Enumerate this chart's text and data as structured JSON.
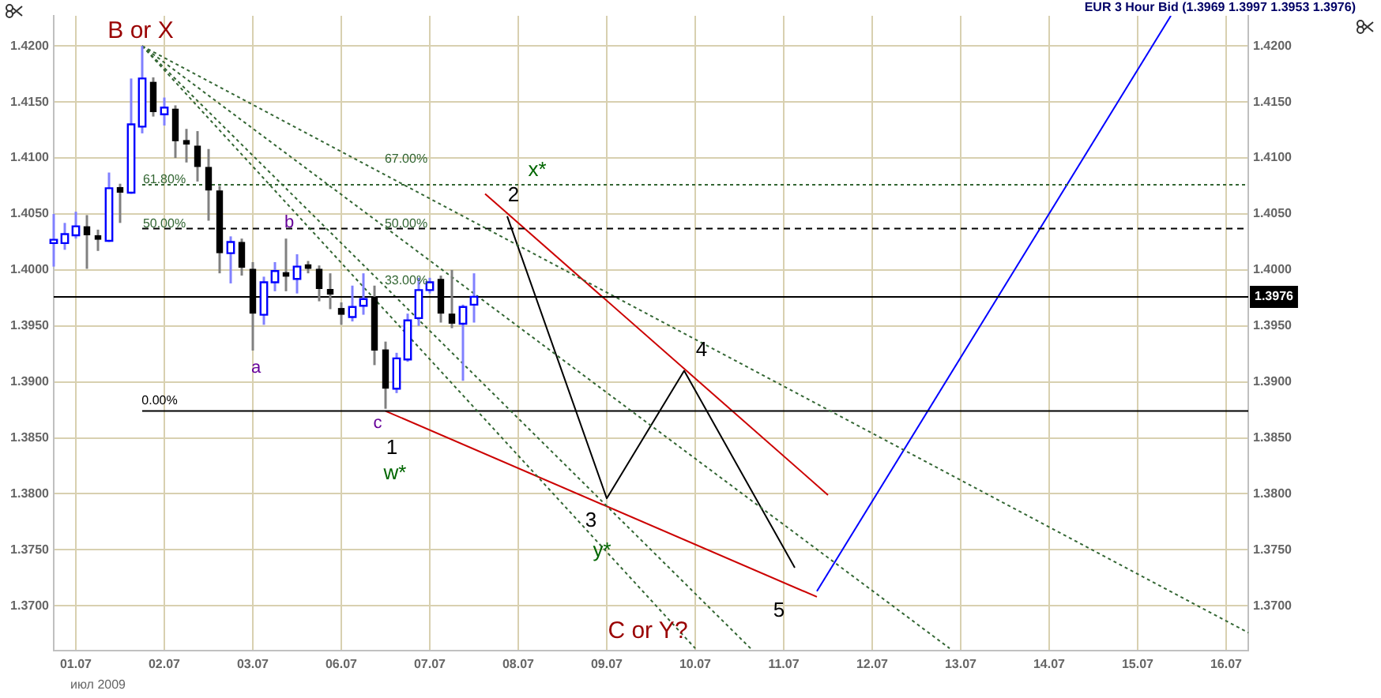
{
  "chart_data": {
    "type": "candlestick",
    "title": "EUR 3 Hour Bid (1.3969 1.3997 1.3953 1.3976)",
    "categories": [
      null,
      null,
      "01.07",
      null,
      null,
      null,
      null,
      null,
      null,
      null,
      "02.07",
      null,
      null,
      null,
      null,
      null,
      null,
      null,
      "03.07",
      null,
      null,
      null,
      null,
      null,
      null,
      null,
      "06.07",
      null,
      null,
      null,
      null,
      null,
      null,
      null,
      "07.07",
      null,
      null,
      null,
      null,
      null,
      null,
      null,
      "08.07",
      null,
      null,
      null,
      null,
      null,
      null,
      null,
      "09.07",
      null,
      null,
      null,
      null,
      null,
      null,
      null,
      "10.07",
      null,
      null,
      null,
      null,
      null,
      null,
      null,
      "11.07",
      null,
      null,
      null,
      null,
      null,
      null,
      null,
      "12.07",
      null,
      null,
      null,
      null,
      null,
      null,
      null,
      "13.07",
      null,
      null,
      null,
      null,
      null,
      null,
      null,
      "14.07",
      null,
      null,
      null,
      null,
      null,
      null,
      null,
      "15.07",
      null,
      null,
      null,
      null,
      null,
      null,
      null,
      "16.07",
      null,
      null
    ],
    "ohlc": [
      [
        1.4024,
        1.405,
        1.4003,
        1.4027
      ],
      [
        1.4024,
        1.4042,
        1.4018,
        1.4032
      ],
      [
        1.4031,
        1.4052,
        1.4028,
        1.4039
      ],
      [
        1.4039,
        1.4049,
        1.4001,
        1.4031
      ],
      [
        1.4031,
        1.4036,
        1.4017,
        1.4027
      ],
      [
        1.4026,
        1.4087,
        1.4025,
        1.4073
      ],
      [
        1.4074,
        1.4077,
        1.4042,
        1.4069
      ],
      [
        1.4069,
        1.4171,
        1.4068,
        1.413
      ],
      [
        1.4128,
        1.42,
        1.4122,
        1.4171
      ],
      [
        1.4168,
        1.4172,
        1.4137,
        1.4141
      ],
      [
        1.4139,
        1.4154,
        1.4129,
        1.4145
      ],
      [
        1.4144,
        1.4147,
        1.41,
        1.4115
      ],
      [
        1.4116,
        1.4126,
        1.4096,
        1.4112
      ],
      [
        1.4111,
        1.4124,
        1.4079,
        1.4092
      ],
      [
        1.4092,
        1.4108,
        1.4044,
        1.4071
      ],
      [
        1.4071,
        1.4075,
        1.3997,
        1.4015
      ],
      [
        1.4015,
        1.403,
        1.3988,
        1.4025
      ],
      [
        1.4025,
        1.4028,
        1.3995,
        1.4002
      ],
      [
        1.4001,
        1.4007,
        1.3928,
        1.3961
      ],
      [
        1.396,
        1.3994,
        1.3951,
        1.3989
      ],
      [
        1.3989,
        1.4007,
        1.3981,
        1.3999
      ],
      [
        1.3998,
        1.4028,
        1.3981,
        1.3994
      ],
      [
        1.3992,
        1.4014,
        1.3979,
        1.4003
      ],
      [
        1.4005,
        1.4008,
        1.3997,
        1.4001
      ],
      [
        1.4001,
        1.4004,
        1.3972,
        1.3983
      ],
      [
        1.3983,
        1.3997,
        1.3965,
        1.3978
      ],
      [
        1.3966,
        1.3971,
        1.3951,
        1.396
      ],
      [
        1.3958,
        1.3986,
        1.3954,
        1.3967
      ],
      [
        1.3968,
        1.3997,
        1.396,
        1.3974
      ],
      [
        1.3976,
        1.3986,
        1.3915,
        1.3928
      ],
      [
        1.3929,
        1.3936,
        1.3876,
        1.3894
      ],
      [
        1.3894,
        1.3926,
        1.389,
        1.3921
      ],
      [
        1.392,
        1.3961,
        1.3918,
        1.3955
      ],
      [
        1.3957,
        1.3993,
        1.395,
        1.3982
      ],
      [
        1.3982,
        1.3993,
        1.3979,
        1.3989
      ],
      [
        1.3992,
        1.3995,
        1.3953,
        1.3961
      ],
      [
        1.3961,
        1.4,
        1.3948,
        1.3952
      ],
      [
        1.3952,
        1.3969,
        1.3901,
        1.3967
      ],
      [
        1.3969,
        1.3997,
        1.3953,
        1.3976
      ],
      null,
      null,
      null,
      null,
      null,
      null,
      null,
      null,
      null,
      null,
      null,
      null,
      null,
      null,
      null,
      null,
      null,
      null,
      null,
      null,
      null,
      null,
      null,
      null,
      null,
      null,
      null,
      null,
      null,
      null,
      null,
      null,
      null,
      null,
      null,
      null,
      null,
      null,
      null,
      null,
      null,
      null,
      null,
      null,
      null,
      null,
      null,
      null,
      null,
      null,
      null,
      null,
      null,
      null,
      null,
      null,
      null,
      null,
      null,
      null,
      null,
      null,
      null,
      null,
      null,
      null,
      null,
      null,
      null,
      null
    ],
    "series": [
      {
        "type": "line",
        "color": "#336633",
        "line_style": "dotted",
        "values": [
          null,
          null,
          null,
          null,
          null,
          null,
          null,
          null,
          1.42,
          null,
          null,
          null,
          null,
          null,
          null,
          null,
          null,
          null,
          null,
          null,
          null,
          null,
          null,
          null,
          null,
          null,
          null,
          null,
          null,
          null,
          null,
          null,
          null,
          null,
          null,
          null,
          null,
          null,
          null,
          null,
          null,
          null,
          null,
          null,
          null,
          null,
          null,
          null,
          null,
          null,
          null,
          null,
          null,
          null,
          null,
          null,
          null,
          null,
          null,
          null,
          null,
          null,
          null,
          null,
          null,
          null,
          null,
          null,
          null,
          null,
          null,
          null,
          null,
          null,
          null,
          null,
          null,
          null,
          null,
          null,
          null,
          null,
          null,
          null,
          null,
          null,
          null,
          null,
          null,
          null,
          null,
          null,
          null,
          null,
          null,
          null,
          null,
          null,
          null,
          null,
          null,
          null,
          null,
          null,
          null,
          null,
          null,
          null,
          1.3676
        ]
      },
      {
        "type": "line",
        "color": "#336633",
        "line_style": "dotted",
        "values": [
          null,
          null,
          null,
          null,
          null,
          null,
          null,
          null,
          1.42,
          null,
          null,
          null,
          null,
          null,
          null,
          null,
          null,
          null,
          null,
          null,
          null,
          null,
          null,
          null,
          null,
          null,
          null,
          null,
          null,
          null,
          null,
          null,
          null,
          null,
          null,
          null,
          null,
          null,
          null,
          null,
          null,
          null,
          null,
          null,
          null,
          null,
          null,
          null,
          null,
          null,
          null,
          null,
          null,
          null,
          null,
          null,
          null,
          null,
          null,
          null,
          null,
          null,
          null,
          null,
          null,
          null,
          null,
          null,
          null,
          null,
          null,
          null,
          null,
          null,
          null,
          null,
          null,
          null,
          null,
          null,
          null,
          1.3662,
          null,
          null,
          null,
          null,
          null,
          null,
          null,
          null,
          null,
          null,
          null,
          null,
          null,
          null,
          null,
          null,
          null,
          null,
          null,
          null,
          null,
          null,
          null,
          null,
          null,
          null,
          null
        ]
      },
      {
        "type": "line",
        "color": "#336633",
        "line_style": "dotted",
        "values": [
          null,
          null,
          null,
          null,
          null,
          null,
          null,
          null,
          1.42,
          null,
          null,
          null,
          null,
          null,
          null,
          null,
          null,
          null,
          null,
          null,
          null,
          null,
          null,
          null,
          null,
          null,
          null,
          null,
          null,
          null,
          null,
          null,
          null,
          null,
          null,
          null,
          null,
          null,
          null,
          null,
          null,
          null,
          null,
          null,
          null,
          null,
          null,
          null,
          null,
          null,
          null,
          null,
          null,
          null,
          null,
          null,
          null,
          null,
          null,
          null,
          null,
          null,
          null,
          1.3662,
          null,
          null,
          null,
          null,
          null,
          null,
          null,
          null,
          null,
          null,
          null,
          null,
          null,
          null,
          null,
          null,
          null,
          null,
          null,
          null,
          null,
          null,
          null,
          null,
          null,
          null,
          null,
          null,
          null,
          null,
          null,
          null,
          null,
          null,
          null,
          null,
          null,
          null,
          null,
          null,
          null,
          null,
          null,
          null,
          null
        ]
      },
      {
        "type": "line",
        "color": "#336633",
        "line_style": "dotted",
        "values": [
          null,
          null,
          null,
          null,
          null,
          null,
          null,
          null,
          1.42,
          null,
          null,
          null,
          null,
          null,
          null,
          null,
          null,
          null,
          null,
          null,
          null,
          null,
          null,
          null,
          null,
          null,
          null,
          null,
          null,
          null,
          null,
          null,
          null,
          null,
          null,
          null,
          null,
          null,
          null,
          null,
          null,
          null,
          null,
          null,
          null,
          null,
          null,
          null,
          null,
          null,
          null,
          null,
          null,
          null,
          null,
          null,
          null,
          null,
          1.3662,
          null,
          null,
          null,
          null,
          null,
          null,
          null,
          null,
          null,
          null,
          null,
          null,
          null,
          null,
          null,
          null,
          null,
          null,
          null,
          null,
          null,
          null,
          null,
          null,
          null,
          null,
          null,
          null,
          null,
          null,
          null,
          null,
          null,
          null,
          null,
          null,
          null,
          null,
          null,
          null,
          null,
          null,
          null,
          null,
          null,
          null,
          null,
          null,
          null,
          null
        ]
      },
      {
        "type": "line",
        "color": "#336633",
        "line_style": "dotted",
        "values": [
          null,
          null,
          null,
          null,
          null,
          null,
          null,
          null,
          1.4076,
          null,
          null,
          null,
          null,
          null,
          null,
          null,
          null,
          null,
          null,
          null,
          null,
          null,
          null,
          null,
          null,
          null,
          null,
          null,
          null,
          null,
          null,
          null,
          null,
          null,
          null,
          null,
          null,
          null,
          null,
          null,
          null,
          null,
          null,
          null,
          null,
          null,
          null,
          null,
          null,
          null,
          null,
          null,
          null,
          null,
          null,
          null,
          null,
          null,
          null,
          null,
          null,
          null,
          null,
          null,
          null,
          null,
          null,
          null,
          null,
          null,
          null,
          null,
          null,
          null,
          null,
          null,
          null,
          null,
          null,
          null,
          null,
          null,
          null,
          null,
          null,
          null,
          null,
          null,
          null,
          null,
          null,
          null,
          null,
          null,
          null,
          null,
          null,
          null,
          null,
          null,
          null,
          null,
          null,
          null,
          null,
          null,
          null,
          null,
          1.4076
        ]
      },
      {
        "type": "line",
        "color": "#000000",
        "line_style": "dashed",
        "values": [
          null,
          null,
          null,
          null,
          null,
          null,
          null,
          null,
          1.4037,
          null,
          null,
          null,
          null,
          null,
          null,
          null,
          null,
          null,
          null,
          null,
          null,
          null,
          null,
          null,
          null,
          null,
          null,
          null,
          null,
          null,
          null,
          null,
          null,
          null,
          null,
          null,
          null,
          null,
          null,
          null,
          null,
          null,
          null,
          null,
          null,
          null,
          null,
          null,
          null,
          null,
          null,
          null,
          null,
          null,
          null,
          null,
          null,
          null,
          null,
          null,
          null,
          null,
          null,
          null,
          null,
          null,
          null,
          null,
          null,
          null,
          null,
          null,
          null,
          null,
          null,
          null,
          null,
          null,
          null,
          null,
          null,
          null,
          null,
          null,
          null,
          null,
          null,
          null,
          null,
          null,
          null,
          null,
          null,
          null,
          null,
          null,
          null,
          null,
          null,
          null,
          null,
          null,
          null,
          null,
          null,
          null,
          null,
          null,
          1.4037
        ]
      },
      {
        "type": "line",
        "color": "#000000",
        "line_style": "solid",
        "values": [
          null,
          null,
          null,
          null,
          null,
          null,
          null,
          null,
          1.3874,
          null,
          null,
          null,
          null,
          null,
          null,
          null,
          null,
          null,
          null,
          null,
          null,
          null,
          null,
          null,
          null,
          null,
          null,
          null,
          null,
          null,
          null,
          null,
          null,
          null,
          null,
          null,
          null,
          null,
          null,
          null,
          null,
          null,
          null,
          null,
          null,
          null,
          null,
          null,
          null,
          null,
          null,
          null,
          null,
          null,
          null,
          null,
          null,
          null,
          null,
          null,
          null,
          null,
          null,
          null,
          null,
          null,
          null,
          null,
          null,
          null,
          null,
          null,
          null,
          null,
          null,
          null,
          null,
          null,
          null,
          null,
          null,
          null,
          null,
          null,
          null,
          null,
          null,
          null,
          null,
          null,
          null,
          null,
          null,
          null,
          null,
          null,
          null,
          null,
          null,
          null,
          null,
          null,
          null,
          null,
          null,
          null,
          null,
          null,
          1.3874
        ]
      },
      {
        "type": "line",
        "color": "#cc0000",
        "line_style": "solid",
        "values": [
          null,
          null,
          null,
          null,
          null,
          null,
          null,
          null,
          null,
          null,
          null,
          null,
          null,
          null,
          null,
          null,
          null,
          null,
          null,
          null,
          null,
          null,
          null,
          null,
          null,
          null,
          null,
          null,
          null,
          null,
          null,
          null,
          null,
          null,
          null,
          null,
          null,
          null,
          null,
          1.4068,
          null,
          null,
          null,
          null,
          null,
          null,
          null,
          null,
          null,
          null,
          null,
          null,
          null,
          null,
          null,
          null,
          null,
          null,
          null,
          null,
          null,
          null,
          null,
          null,
          null,
          null,
          null,
          null,
          null,
          null,
          1.3799,
          null,
          null,
          null,
          null,
          null,
          null,
          null,
          null,
          null,
          null,
          null,
          null,
          null,
          null,
          null,
          null,
          null,
          null,
          null,
          null,
          null,
          null,
          null,
          null,
          null,
          null,
          null,
          null,
          null,
          null,
          null,
          null,
          null,
          null,
          null,
          null,
          null,
          null
        ]
      },
      {
        "type": "line",
        "color": "#cc0000",
        "line_style": "solid",
        "values": [
          null,
          null,
          null,
          null,
          null,
          null,
          null,
          null,
          null,
          null,
          null,
          null,
          null,
          null,
          null,
          null,
          null,
          null,
          null,
          null,
          null,
          null,
          null,
          null,
          null,
          null,
          null,
          null,
          null,
          null,
          1.3874,
          null,
          null,
          null,
          null,
          null,
          null,
          null,
          null,
          null,
          null,
          null,
          null,
          null,
          null,
          null,
          null,
          null,
          null,
          null,
          null,
          null,
          null,
          null,
          null,
          null,
          null,
          null,
          null,
          null,
          null,
          null,
          null,
          null,
          null,
          null,
          null,
          null,
          null,
          1.3708,
          null,
          null,
          null,
          null,
          null,
          null,
          null,
          null,
          null,
          null,
          null,
          null,
          null,
          null,
          null,
          null,
          null,
          null,
          null,
          null,
          null,
          null,
          null,
          null,
          null,
          null,
          null,
          null,
          null,
          null,
          null,
          null,
          null,
          null,
          null,
          null,
          null,
          null,
          null
        ]
      },
      {
        "type": "line",
        "color": "#000000",
        "line_style": "solid",
        "values": [
          null,
          null,
          null,
          null,
          null,
          null,
          null,
          null,
          null,
          null,
          null,
          null,
          null,
          null,
          null,
          null,
          null,
          null,
          null,
          null,
          null,
          null,
          null,
          null,
          null,
          null,
          null,
          null,
          null,
          null,
          null,
          null,
          null,
          null,
          null,
          null,
          null,
          null,
          null,
          null,
          null,
          1.4048,
          null,
          null,
          null,
          null,
          null,
          null,
          null,
          null,
          1.3796,
          null,
          null,
          null,
          null,
          null,
          null,
          1.391,
          null,
          null,
          null,
          null,
          null,
          null,
          null,
          null,
          null,
          1.3734,
          null,
          null,
          null,
          null,
          null,
          null,
          null,
          null,
          null,
          null,
          null,
          null,
          null,
          null,
          null,
          null,
          null,
          null,
          null,
          null,
          null,
          null,
          null,
          null,
          null,
          null,
          null,
          null,
          null,
          null,
          null,
          null,
          null,
          null,
          null,
          null,
          null,
          null,
          null,
          null,
          null
        ]
      },
      {
        "type": "line",
        "color": "#0000ff",
        "line_style": "solid",
        "values": [
          null,
          null,
          null,
          null,
          null,
          null,
          null,
          null,
          null,
          null,
          null,
          null,
          null,
          null,
          null,
          null,
          null,
          null,
          null,
          null,
          null,
          null,
          null,
          null,
          null,
          null,
          null,
          null,
          null,
          null,
          null,
          null,
          null,
          null,
          null,
          null,
          null,
          null,
          null,
          null,
          null,
          null,
          null,
          null,
          null,
          null,
          null,
          null,
          null,
          null,
          null,
          null,
          null,
          null,
          null,
          null,
          null,
          null,
          null,
          null,
          null,
          null,
          null,
          null,
          null,
          null,
          null,
          null,
          null,
          1.3713,
          null,
          null,
          null,
          null,
          null,
          null,
          null,
          null,
          null,
          null,
          null,
          null,
          null,
          null,
          null,
          null,
          null,
          null,
          null,
          null,
          null,
          null,
          null,
          null,
          null,
          null,
          null,
          null,
          null,
          null,
          null,
          1.4227,
          null,
          null,
          null,
          null,
          null,
          null,
          null
        ]
      }
    ],
    "ref_lines": [
      {
        "axis": "y2",
        "value": 1.3976,
        "label": "1.3976",
        "color": "#000000"
      }
    ],
    "annotations": [
      "B or X",
      "a",
      "b",
      "c",
      "1",
      "w*",
      "2",
      "x*",
      "3",
      "y*",
      "4",
      "5",
      "C or Y?",
      "67.00%",
      "61.80%",
      "50.00%",
      "50.00%",
      "33.00%",
      "0.00%",
      "июл 2009"
    ],
    "ylim": [
      1.366,
      1.4227
    ],
    "yticks": [
      {
        "value": 1.37,
        "label": "1.3700"
      },
      {
        "value": 1.375,
        "label": "1.3750"
      },
      {
        "value": 1.38,
        "label": "1.3800"
      },
      {
        "value": 1.385,
        "label": "1.3850"
      },
      {
        "value": 1.39,
        "label": "1.3900"
      },
      {
        "value": 1.395,
        "label": "1.3950"
      },
      {
        "value": 1.4,
        "label": "1.4000"
      },
      {
        "value": 1.405,
        "label": "1.4050"
      },
      {
        "value": 1.41,
        "label": "1.4100"
      },
      {
        "value": 1.415,
        "label": "1.4150"
      },
      {
        "value": 1.42,
        "label": "1.4200"
      }
    ],
    "y2lim": [
      1.366,
      1.4227
    ],
    "y2ticks": [
      {
        "value": 1.37,
        "label": "1.3700"
      },
      {
        "value": 1.375,
        "label": "1.3750"
      },
      {
        "value": 1.38,
        "label": "1.3800"
      },
      {
        "value": 1.385,
        "label": "1.3850"
      },
      {
        "value": 1.39,
        "label": "1.3900"
      },
      {
        "value": 1.395,
        "label": "1.3950"
      },
      {
        "value": 1.4,
        "label": "1.4000"
      },
      {
        "value": 1.405,
        "label": "1.4050"
      },
      {
        "value": 1.41,
        "label": "1.4100"
      },
      {
        "value": 1.415,
        "label": "1.4150"
      },
      {
        "value": 1.42,
        "label": "1.4200"
      }
    ],
    "grid": true,
    "legend": false
  }
}
